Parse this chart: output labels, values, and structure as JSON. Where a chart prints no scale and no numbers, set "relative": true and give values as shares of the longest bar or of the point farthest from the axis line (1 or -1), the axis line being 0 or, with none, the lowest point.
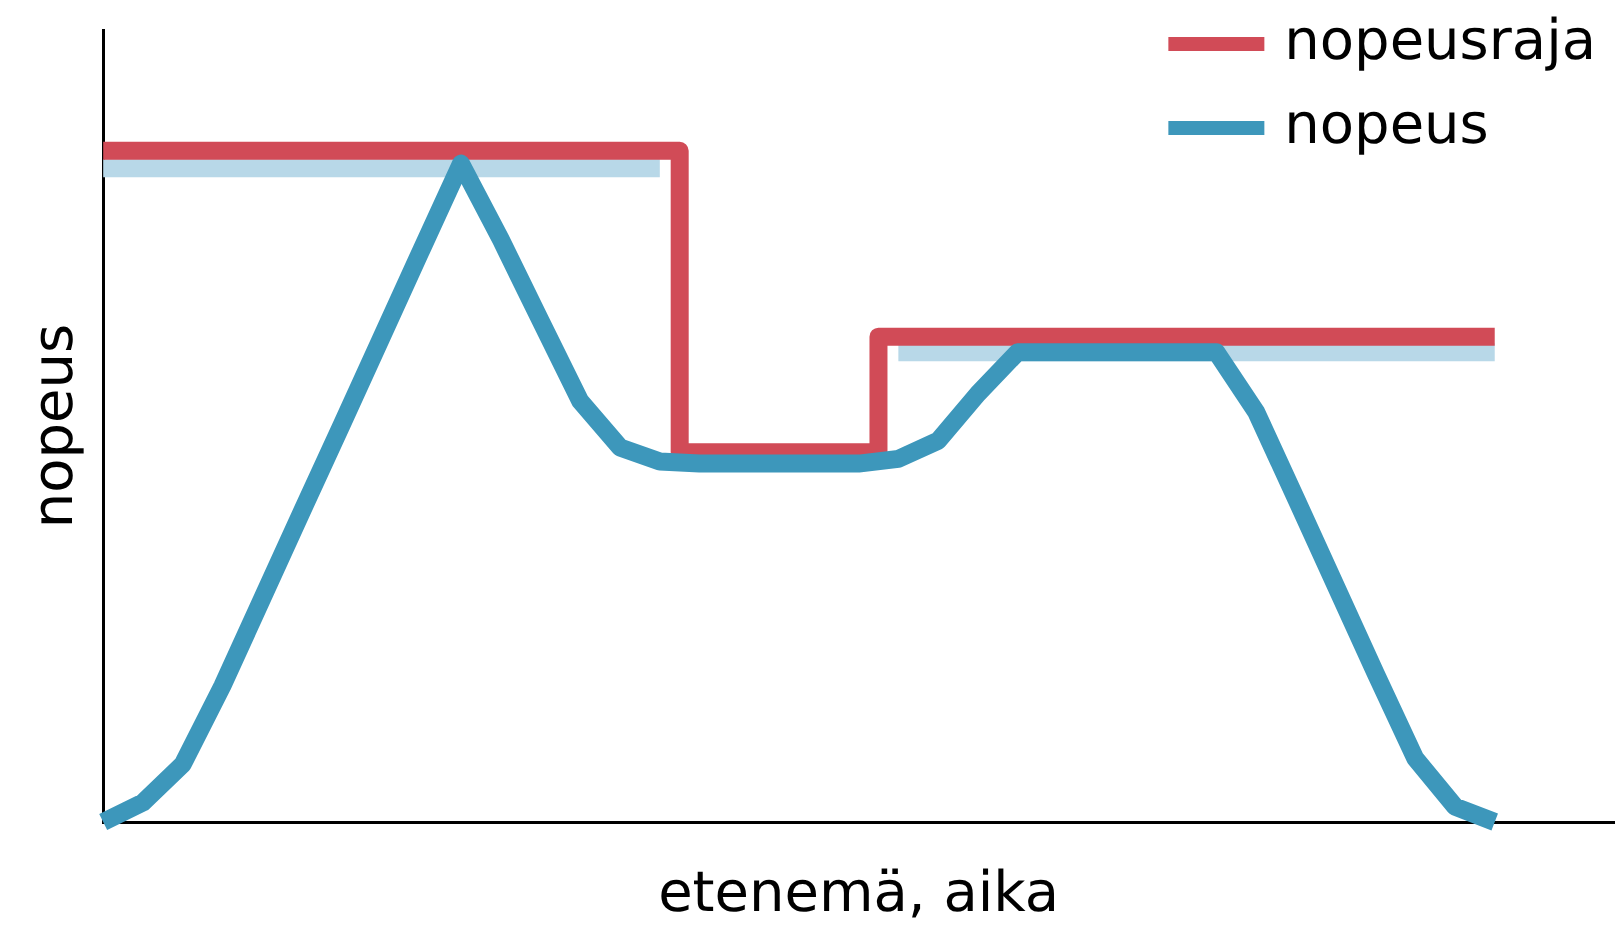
{
  "chart_data": {
    "type": "line",
    "relative": true,
    "xlabel": "etenemä, aika",
    "ylabel": "nopeus",
    "grid": false,
    "legend": "top right",
    "marker": "none",
    "line_style": "solid",
    "categories": [
      null,
      null,
      null,
      null,
      null,
      null,
      null,
      null,
      null,
      null,
      null,
      null,
      null,
      null,
      null,
      null,
      null,
      null,
      null,
      null,
      null,
      null,
      null,
      null,
      null,
      null,
      null,
      null,
      null,
      null,
      null,
      null,
      null,
      null,
      null,
      null,
      null,
      null,
      null
    ],
    "series": [
      {
        "type": "step",
        "color": "#b8d8e8",
        "values": [
          0.974,
          0.974,
          0.974,
          0.974,
          0.974,
          0.974,
          0.974,
          0.974,
          0.974,
          0.974,
          0.974,
          0.974,
          0.974,
          0.974,
          0.974,
          null,
          null,
          null,
          null,
          null,
          0.7,
          0.7,
          0.7,
          0.7,
          0.7,
          0.7,
          0.7,
          0.7,
          0.7,
          0.7,
          0.7,
          0.7,
          0.7,
          0.7,
          0.7,
          0.7,
          null,
          null,
          null
        ]
      },
      {
        "type": "step",
        "name": "nopeusraja",
        "color": "#d14b57",
        "values": [
          1,
          1,
          1,
          1,
          1,
          1,
          1,
          1,
          1,
          1,
          1,
          1,
          1,
          1,
          1,
          0.551,
          0.551,
          0.551,
          0.551,
          0.551,
          0.723,
          0.723,
          0.723,
          0.723,
          0.723,
          0.723,
          0.723,
          0.723,
          0.723,
          0.723,
          0.723,
          0.723,
          0.723,
          0.723,
          0.723,
          0.723,
          null,
          null,
          null
        ]
      },
      {
        "type": "line",
        "name": "nopeus",
        "color": "#3d97bb",
        "values": [
          0,
          0.029,
          0.086,
          0.203,
          0.333,
          0.463,
          0.592,
          0.722,
          0.852,
          0.981,
          0.868,
          0.747,
          0.627,
          0.558,
          0.537,
          0.534,
          0.534,
          0.534,
          0.534,
          0.534,
          0.541,
          0.568,
          0.638,
          0.7,
          0.7,
          0.7,
          0.7,
          0.7,
          0.7,
          0.611,
          0.482,
          0.352,
          0.222,
          0.095,
          0.023,
          0,
          null,
          null,
          null
        ]
      }
    ]
  }
}
